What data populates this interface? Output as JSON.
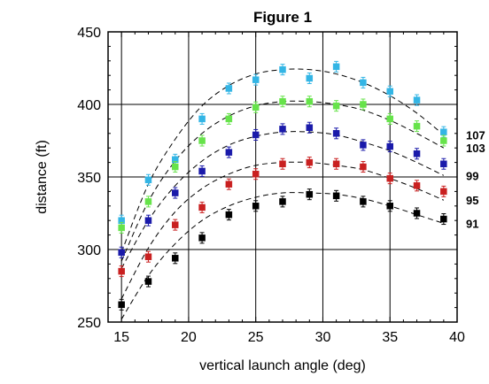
{
  "chart_data": {
    "type": "scatter",
    "title": "Figure 1",
    "xlabel": "vertical launch angle (deg)",
    "ylabel": "distance (ft)",
    "xlim": [
      14,
      40
    ],
    "ylim": [
      250,
      450
    ],
    "x_ticks": [
      "15",
      "20",
      "25",
      "30",
      "35",
      "40"
    ],
    "y_ticks": [
      "250",
      "300",
      "350",
      "400",
      "450"
    ],
    "grid": true,
    "x": [
      15,
      17,
      19,
      21,
      23,
      25,
      27,
      29,
      31,
      33,
      35,
      37,
      39
    ],
    "series": [
      {
        "name": "107",
        "color": "#33b5e5",
        "values": [
          320,
          348,
          362,
          390,
          411,
          417,
          424,
          418,
          426,
          415,
          409,
          403,
          381
        ],
        "fit": [
          298,
          345,
          376,
          399,
          413,
          421,
          424,
          424,
          421,
          415,
          406,
          394,
          379
        ]
      },
      {
        "name": "103",
        "color": "#66e34a",
        "values": [
          315,
          333,
          357,
          375,
          390,
          398,
          402,
          402,
          399,
          400,
          390,
          385,
          375
        ],
        "fit": [
          292,
          333,
          361,
          380,
          392,
          399,
          402,
          402,
          400,
          396,
          389,
          380,
          370
        ]
      },
      {
        "name": "99",
        "color": "#1a1aaa",
        "values": [
          298,
          320,
          339,
          354,
          367,
          379,
          383,
          384,
          380,
          372,
          371,
          366,
          359
        ],
        "fit": [
          287,
          320,
          344,
          361,
          372,
          378,
          381,
          381,
          379,
          374,
          368,
          360,
          351
        ]
      },
      {
        "name": "95",
        "color": "#c92020",
        "values": [
          285,
          295,
          317,
          329,
          345,
          352,
          359,
          360,
          359,
          357,
          349,
          344,
          340
        ],
        "fit": [
          266,
          301,
          326,
          342,
          352,
          358,
          360,
          360,
          358,
          355,
          349,
          342,
          334
        ]
      },
      {
        "name": "91",
        "color": "#000000",
        "values": [
          262,
          278,
          294,
          308,
          324,
          330,
          333,
          338,
          337,
          333,
          330,
          325,
          321
        ],
        "fit": [
          252,
          282,
          304,
          320,
          330,
          336,
          339,
          339,
          338,
          335,
          330,
          324,
          318
        ]
      }
    ]
  }
}
